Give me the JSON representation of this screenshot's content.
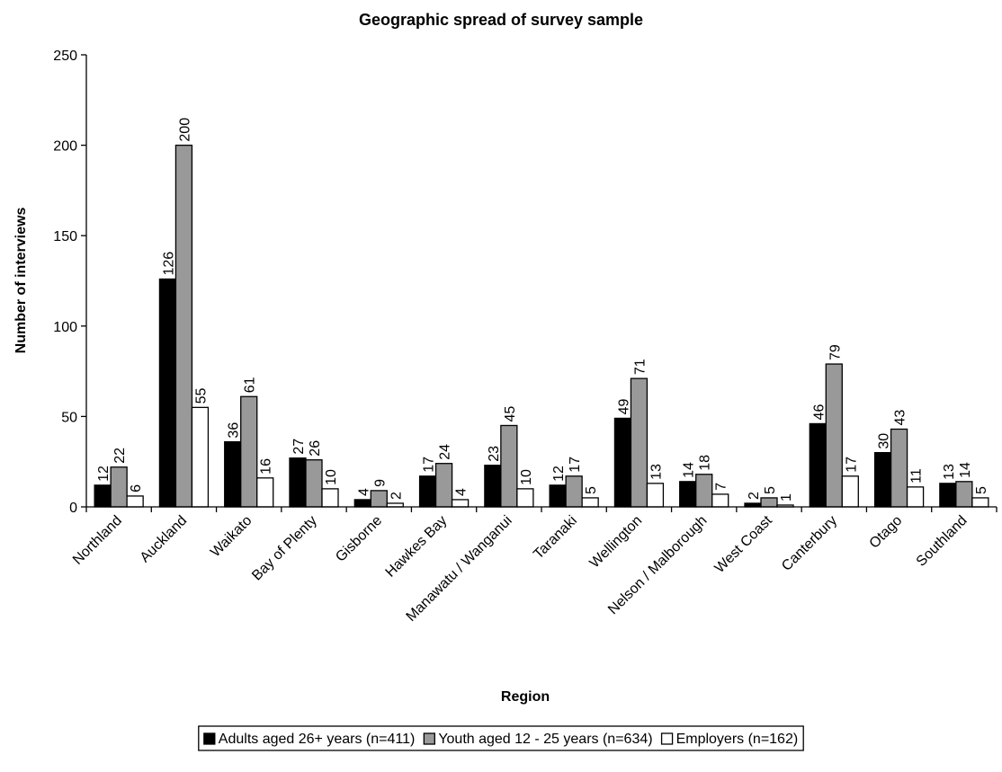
{
  "chart_data": {
    "type": "bar",
    "title": "Geographic spread of survey sample",
    "xlabel": "Region",
    "ylabel": "Number of interviews",
    "ylim": [
      0,
      250
    ],
    "yticks": [
      "0",
      "50",
      "100",
      "150",
      "200",
      "250"
    ],
    "grid": false,
    "legend_position": "bottom",
    "categories": [
      "Northland",
      "Auckland",
      "Waikato",
      "Bay of Plenty",
      "Gisborne",
      "Hawkes Bay",
      "Manawatu / Wanganui",
      "Taranaki",
      "Wellington",
      "Nelson / Malborough",
      "West Coast",
      "Canterbury",
      "Otago",
      "Southland"
    ],
    "series": [
      {
        "name": "Adults aged 26+ years (n=411)",
        "color": "#000000",
        "values": [
          12,
          126,
          36,
          27,
          4,
          17,
          23,
          12,
          49,
          14,
          2,
          46,
          30,
          13
        ]
      },
      {
        "name": "Youth aged 12 - 25 years (n=634)",
        "color": "#999999",
        "values": [
          22,
          200,
          61,
          26,
          9,
          24,
          45,
          17,
          71,
          18,
          5,
          79,
          43,
          14
        ]
      },
      {
        "name": "Employers (n=162)",
        "color": "#ffffff",
        "values": [
          6,
          55,
          16,
          10,
          2,
          4,
          10,
          5,
          13,
          7,
          1,
          17,
          11,
          5
        ]
      }
    ]
  }
}
